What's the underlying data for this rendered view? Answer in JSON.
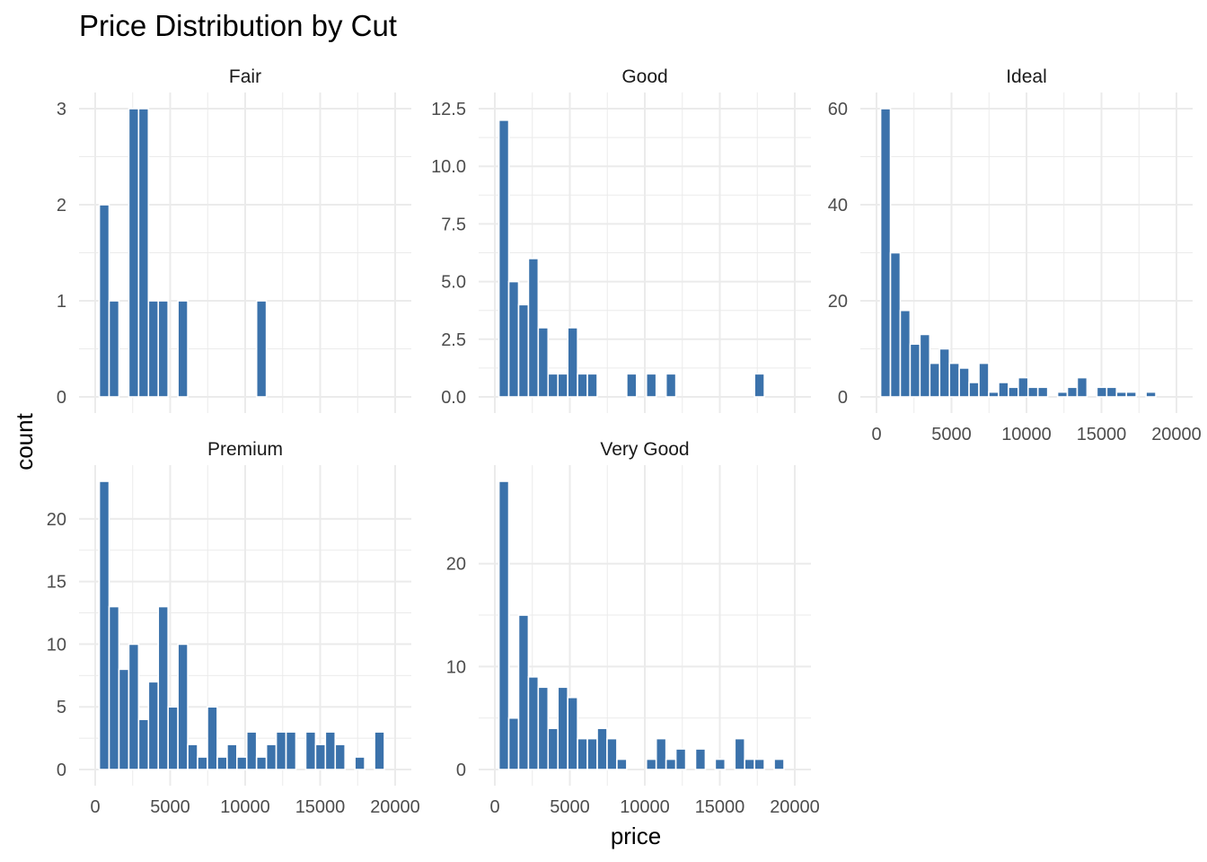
{
  "chart_data": {
    "type": "bar",
    "title": "Price Distribution by Cut",
    "xlabel": "price",
    "ylabel": "count",
    "bar_color": "#3b72ab",
    "grid": true,
    "grid_color": "#ebebeb",
    "bins": [
      602,
      1257,
      1913,
      2568,
      3223,
      3879,
      4534,
      5190,
      5845,
      6500,
      7156,
      7811,
      8467,
      9122,
      9778,
      10433,
      11088,
      11744,
      12399,
      13055,
      13710,
      14366,
      15021,
      15676,
      16332,
      16987,
      17643,
      18298,
      18954
    ],
    "x_ticks": [
      "0",
      "5000",
      "10000",
      "15000",
      "20000"
    ],
    "x_tick_values": [
      0,
      5000,
      10000,
      15000,
      20000
    ],
    "xlim": [
      0,
      20000
    ],
    "panels": [
      {
        "name": "Fair",
        "ylim": [
          0,
          3
        ],
        "y_ticks": [
          "0",
          "1",
          "2",
          "3"
        ],
        "y_tick_values": [
          0,
          1,
          2,
          3
        ],
        "values": [
          2,
          1,
          0,
          3,
          3,
          1,
          1,
          0,
          1,
          0,
          0,
          0,
          0,
          0,
          0,
          0,
          1,
          0,
          0,
          0,
          0,
          0,
          0,
          0,
          0,
          0,
          0,
          0,
          0
        ]
      },
      {
        "name": "Good",
        "ylim": [
          0,
          12.5
        ],
        "y_ticks": [
          "0.0",
          "2.5",
          "5.0",
          "7.5",
          "10.0",
          "12.5"
        ],
        "y_tick_values": [
          0,
          2.5,
          5,
          7.5,
          10,
          12.5
        ],
        "values": [
          12,
          5,
          4,
          6,
          3,
          1,
          1,
          3,
          1,
          1,
          0,
          0,
          0,
          1,
          0,
          1,
          0,
          1,
          0,
          0,
          0,
          0,
          0,
          0,
          0,
          0,
          1,
          0,
          0
        ]
      },
      {
        "name": "Ideal",
        "ylim": [
          0,
          60
        ],
        "y_ticks": [
          "0",
          "20",
          "40",
          "60"
        ],
        "y_tick_values": [
          0,
          20,
          40,
          60
        ],
        "values": [
          60,
          30,
          18,
          11,
          13,
          7,
          10,
          7,
          6,
          3,
          7,
          1,
          3,
          2,
          4,
          2,
          2,
          0,
          1,
          2,
          4,
          0,
          2,
          2,
          1,
          1,
          0,
          1,
          0
        ]
      },
      {
        "name": "Premium",
        "ylim": [
          0,
          23
        ],
        "y_ticks": [
          "0",
          "5",
          "10",
          "15",
          "20"
        ],
        "y_tick_values": [
          0,
          5,
          10,
          15,
          20
        ],
        "values": [
          23,
          13,
          8,
          10,
          4,
          7,
          13,
          5,
          10,
          2,
          1,
          5,
          1,
          2,
          1,
          3,
          1,
          2,
          3,
          3,
          0,
          3,
          2,
          3,
          2,
          0,
          1,
          0,
          3
        ]
      },
      {
        "name": "Very Good",
        "ylim": [
          0,
          28
        ],
        "y_ticks": [
          "0",
          "10",
          "20"
        ],
        "y_tick_values": [
          0,
          10,
          20
        ],
        "values": [
          28,
          5,
          15,
          9,
          8,
          4,
          8,
          7,
          3,
          3,
          4,
          3,
          1,
          0,
          0,
          1,
          3,
          1,
          2,
          0,
          2,
          0,
          1,
          0,
          3,
          1,
          1,
          0,
          1
        ]
      }
    ]
  }
}
